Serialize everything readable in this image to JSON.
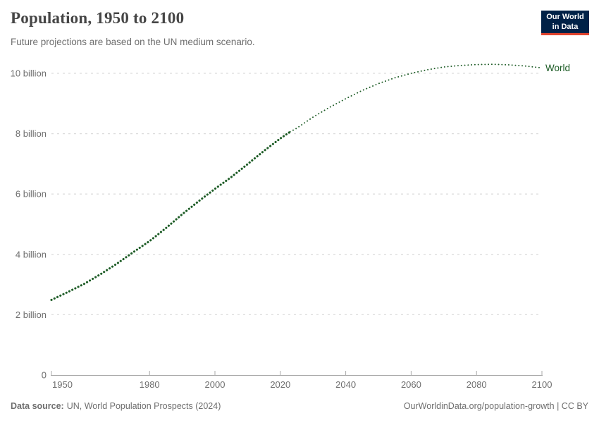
{
  "header": {
    "title": "Population, 1950 to 2100",
    "subtitle": "Future projections are based on the UN medium scenario."
  },
  "logo": {
    "line1": "Our World",
    "line2": "in Data",
    "bg_color": "#002147",
    "accent_color": "#e0432d"
  },
  "footer": {
    "source_label": "Data source:",
    "source_value": "UN, World Population Prospects (2024)",
    "credit": "OurWorldinData.org/population-growth | CC BY"
  },
  "chart_data": {
    "type": "line",
    "title": "Population, 1950 to 2100",
    "xlabel": "",
    "ylabel": "",
    "xlim": [
      1950,
      2100
    ],
    "ylim": [
      0,
      10
    ],
    "unit": "billion people",
    "grid": "dashed-horizontal",
    "grid_color": "#dcdcdc",
    "axis_color": "#a9a9a9",
    "tick_label_color": "#6e6e6e",
    "x_ticks": [
      1950,
      1980,
      2000,
      2020,
      2040,
      2060,
      2080,
      2100
    ],
    "y_ticks": [
      {
        "value": 0,
        "label": "0"
      },
      {
        "value": 2,
        "label": "2 billion"
      },
      {
        "value": 4,
        "label": "4 billion"
      },
      {
        "value": 6,
        "label": "6 billion"
      },
      {
        "value": 8,
        "label": "8 billion"
      },
      {
        "value": 10,
        "label": "10 billion"
      }
    ],
    "series": [
      {
        "name": "World",
        "color": "#1d5c26",
        "label": "World",
        "segments": [
          {
            "kind": "estimates",
            "line_style": "dense-dotted",
            "x": [
              1950,
              1955,
              1960,
              1965,
              1970,
              1975,
              1980,
              1985,
              1990,
              1995,
              2000,
              2005,
              2010,
              2015,
              2020,
              2023
            ],
            "values": [
              2.49,
              2.75,
              3.02,
              3.34,
              3.69,
              4.07,
              4.44,
              4.87,
              5.33,
              5.76,
              6.17,
              6.56,
              6.99,
              7.43,
              7.84,
              8.06
            ]
          },
          {
            "kind": "projection",
            "line_style": "sparse-dotted",
            "x": [
              2023,
              2025,
              2030,
              2035,
              2040,
              2045,
              2050,
              2055,
              2060,
              2065,
              2070,
              2075,
              2080,
              2085,
              2090,
              2095,
              2100
            ],
            "values": [
              8.06,
              8.18,
              8.55,
              8.87,
              9.16,
              9.43,
              9.66,
              9.85,
              10.0,
              10.12,
              10.21,
              10.26,
              10.29,
              10.3,
              10.28,
              10.24,
              10.18
            ]
          }
        ]
      }
    ],
    "legend_position": "end-of-line"
  }
}
